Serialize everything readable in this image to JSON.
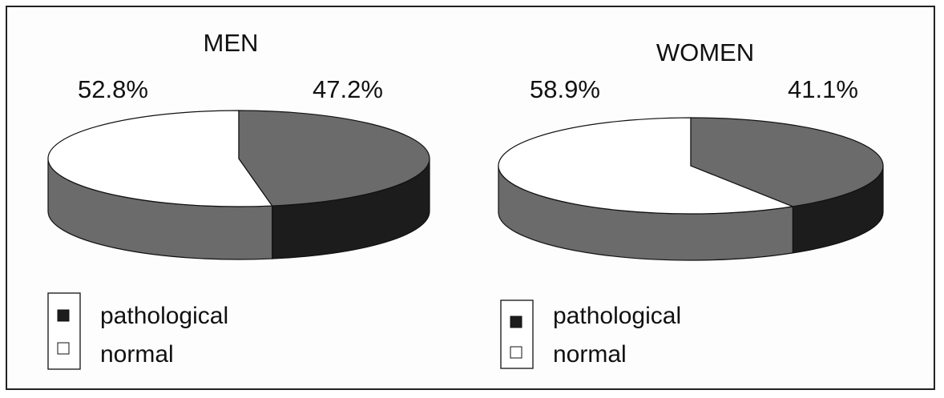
{
  "chart_data": [
    {
      "type": "pie",
      "title": "MEN",
      "slices": [
        {
          "label": "pathological",
          "value": 47.2,
          "display": "47.2%"
        },
        {
          "label": "normal",
          "value": 52.8,
          "display": "52.8%"
        }
      ],
      "legend": {
        "placement": "bottom-left",
        "entries": [
          "pathological",
          "normal"
        ]
      }
    },
    {
      "type": "pie",
      "title": "WOMEN",
      "slices": [
        {
          "label": "pathological",
          "value": 41.1,
          "display": "41.1%"
        },
        {
          "label": "normal",
          "value": 58.9,
          "display": "58.9%"
        }
      ],
      "legend": {
        "placement": "bottom-left",
        "entries": [
          "pathological",
          "normal"
        ]
      }
    }
  ],
  "colors": {
    "pathological_top": "#6b6b6b",
    "pathological_side": "#1c1c1c",
    "normal_top": "#ffffff",
    "normal_side": "#6b6b6b",
    "outline": "#111111"
  }
}
